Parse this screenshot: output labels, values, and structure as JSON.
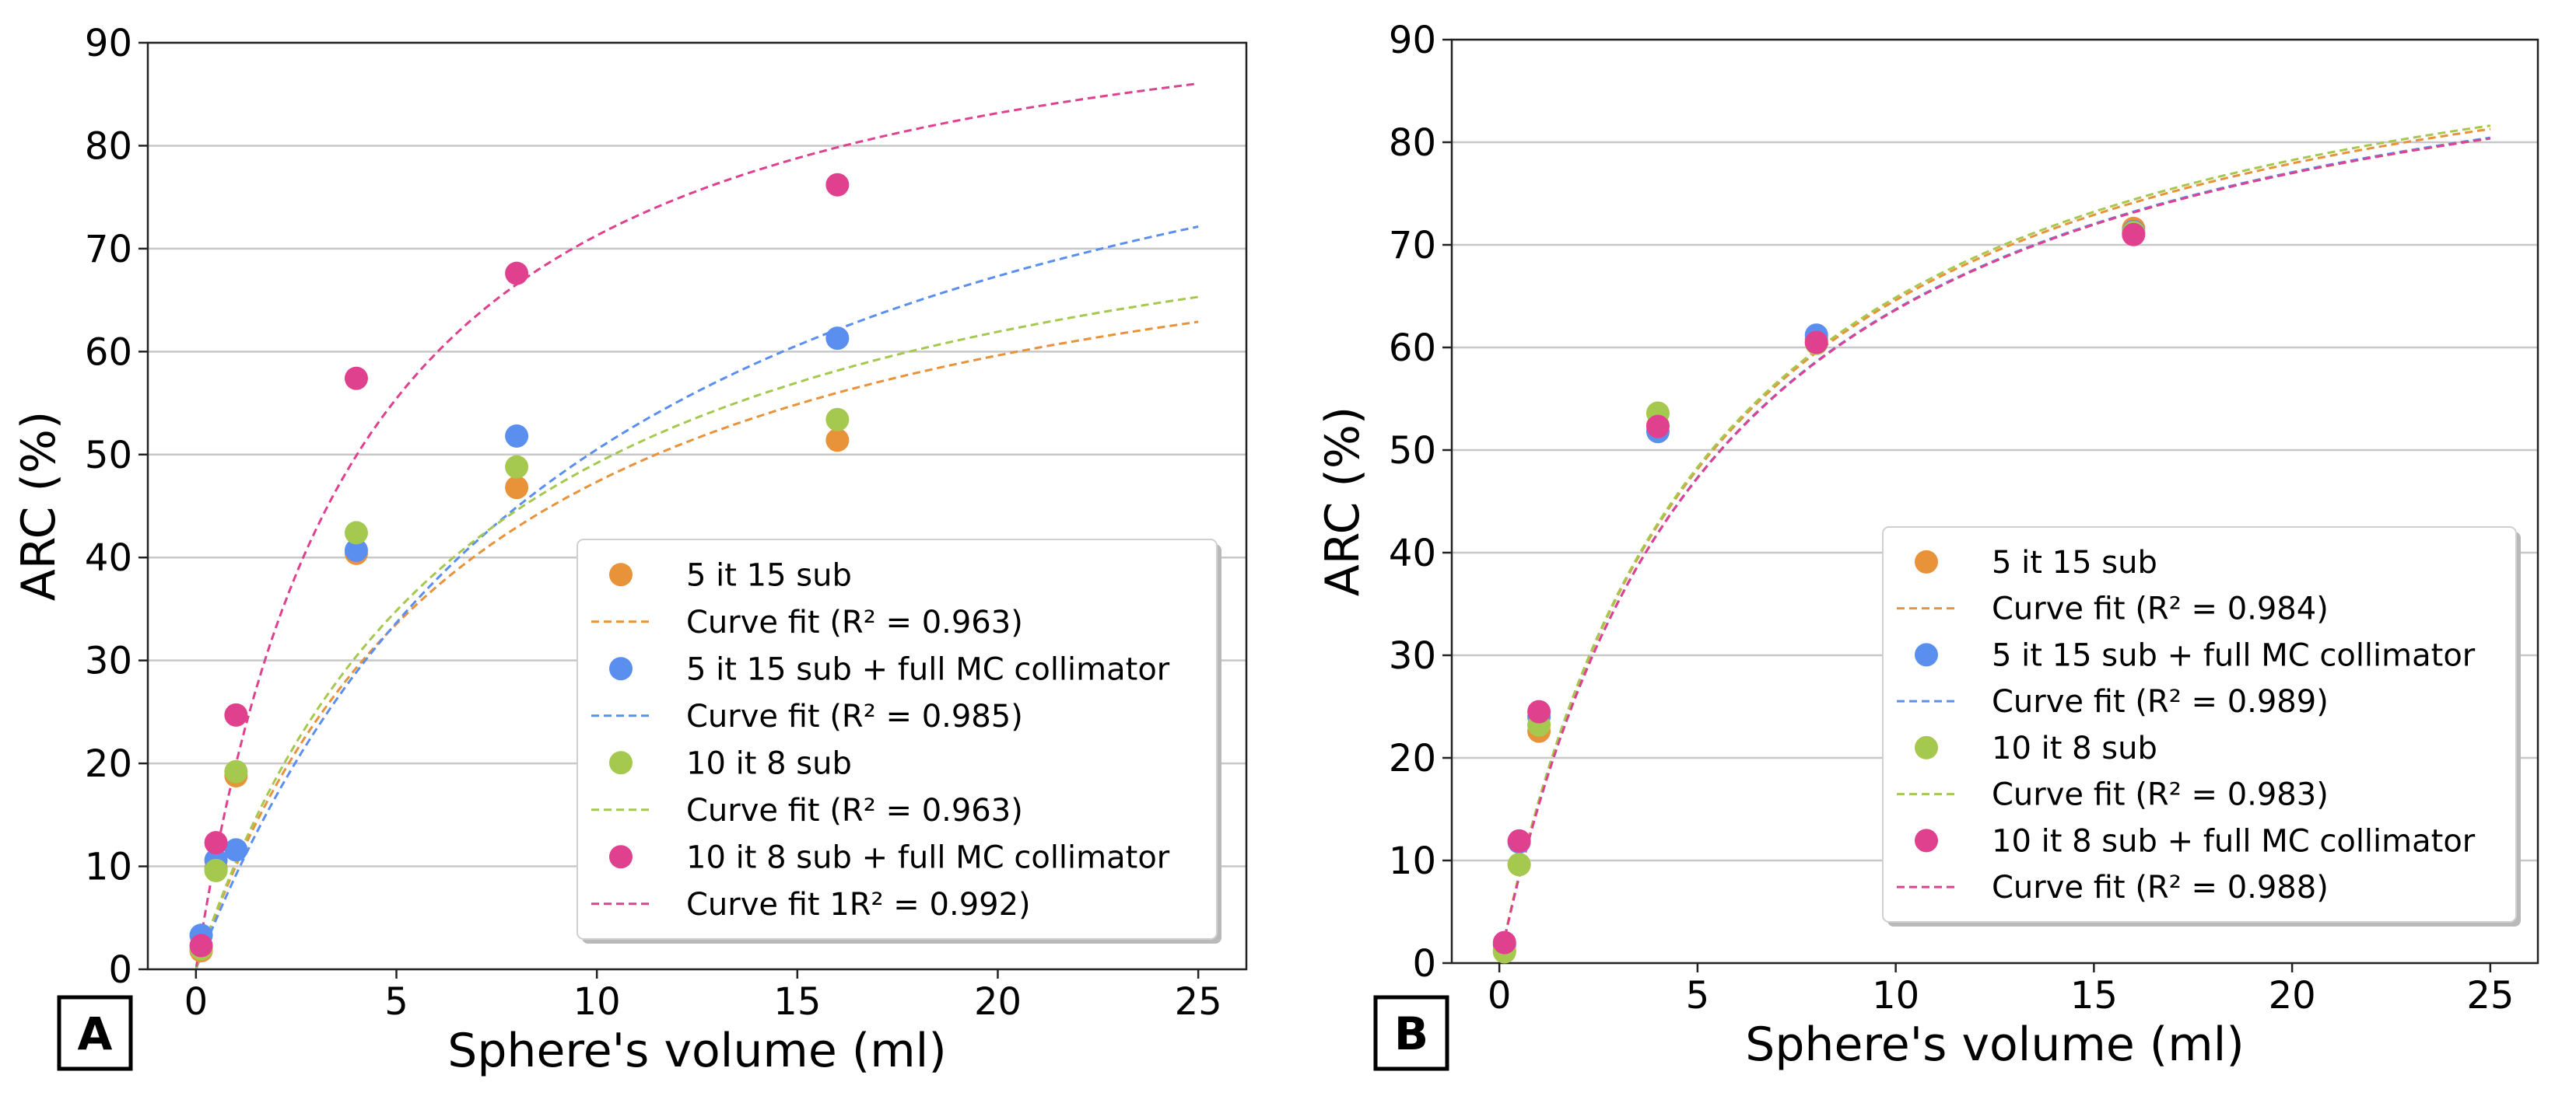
{
  "figure": {
    "colors": {
      "orange": "#e8923a",
      "blue": "#5b8fef",
      "green": "#a5c84f",
      "pink": "#e0418e"
    }
  },
  "chart_data": [
    {
      "panel_label": "A",
      "type": "scatter",
      "xlabel": "Sphere's volume (ml)",
      "ylabel": "ARC (%)",
      "xlim": [
        -1.2,
        26.2
      ],
      "ylim": [
        0,
        90
      ],
      "xticks": [
        0,
        5,
        10,
        15,
        20,
        25
      ],
      "yticks": [
        0,
        10,
        20,
        30,
        40,
        50,
        60,
        70,
        80,
        90
      ],
      "grid": "horizontal",
      "legend_position": "lower-right",
      "series": [
        {
          "name": "5 it 15 sub",
          "fit_label": "Curve fit (R² = 0.963)",
          "color": "#e8923a",
          "x": [
            0.13,
            0.5,
            1.0,
            4.0,
            8.0,
            16.0
          ],
          "y": [
            1.8,
            9.8,
            18.8,
            40.4,
            46.8,
            51.4
          ],
          "fit": {
            "a": 80.5,
            "b": 7.0
          }
        },
        {
          "name": "5 it 15 sub + full MC collimator",
          "fit_label": "Curve fit (R² = 0.985)",
          "color": "#5b8fef",
          "x": [
            0.13,
            0.5,
            1.0,
            4.0,
            8.0,
            16.0
          ],
          "y": [
            3.3,
            10.6,
            11.6,
            40.7,
            51.8,
            61.3
          ],
          "fit": {
            "a": 101.0,
            "b": 10.0
          }
        },
        {
          "name": "10 it 8 sub",
          "fit_label": "Curve fit (R² = 0.963)",
          "color": "#a5c84f",
          "x": [
            0.13,
            0.5,
            1.0,
            4.0,
            8.0,
            16.0
          ],
          "y": [
            2.0,
            9.6,
            19.2,
            42.4,
            48.8,
            53.4
          ],
          "fit": {
            "a": 83.6,
            "b": 7.0
          }
        },
        {
          "name": "10 it 8 sub + full MC collimator",
          "fit_label": "Curve fit 1R² = 0.992)",
          "color": "#e0418e",
          "x": [
            0.13,
            0.5,
            1.0,
            4.0,
            8.0,
            16.0
          ],
          "y": [
            2.3,
            12.3,
            24.7,
            57.4,
            67.6,
            76.2
          ],
          "fit": {
            "a": 99.8,
            "b": 4.0
          }
        }
      ]
    },
    {
      "panel_label": "B",
      "type": "scatter",
      "xlabel": "Sphere's volume (ml)",
      "ylabel": "ARC (%)",
      "xlim": [
        -1.2,
        26.2
      ],
      "ylim": [
        0,
        90
      ],
      "xticks": [
        0,
        5,
        10,
        15,
        20,
        25
      ],
      "yticks": [
        0,
        10,
        20,
        30,
        40,
        50,
        60,
        70,
        80,
        90
      ],
      "grid": "horizontal",
      "legend_position": "lower-right",
      "series": [
        {
          "name": "5 it 15 sub",
          "fit_label": "Curve fit (R² = 0.984)",
          "color": "#e8923a",
          "x": [
            0.13,
            0.5,
            1.0,
            4.0,
            8.0,
            16.0
          ],
          "y": [
            1.2,
            9.6,
            22.6,
            52.4,
            60.8,
            71.6
          ],
          "fit": {
            "a": 98.2,
            "b": 5.2
          }
        },
        {
          "name": "5 it 15 sub + full MC collimator",
          "fit_label": "Curve fit (R² = 0.989)",
          "color": "#5b8fef",
          "x": [
            0.13,
            0.5,
            1.0,
            4.0,
            8.0,
            16.0
          ],
          "y": [
            1.8,
            11.8,
            24.0,
            51.8,
            61.2,
            71.3
          ],
          "fit": {
            "a": 97.5,
            "b": 5.3
          }
        },
        {
          "name": "10 it 8 sub",
          "fit_label": "Curve fit (R² = 0.983)",
          "color": "#a5c84f",
          "x": [
            0.13,
            0.5,
            1.0,
            4.0,
            8.0,
            16.0
          ],
          "y": [
            1.1,
            9.6,
            23.2,
            53.6,
            60.4,
            71.2
          ],
          "fit": {
            "a": 98.6,
            "b": 5.2
          }
        },
        {
          "name": "10 it 8 sub + full MC collimator",
          "fit_label": "Curve fit (R² = 0.988)",
          "color": "#e0418e",
          "x": [
            0.13,
            0.5,
            1.0,
            4.0,
            8.0,
            16.0
          ],
          "y": [
            2.0,
            11.9,
            24.5,
            52.3,
            60.5,
            71.0
          ],
          "fit": {
            "a": 97.4,
            "b": 5.3
          }
        }
      ]
    }
  ]
}
